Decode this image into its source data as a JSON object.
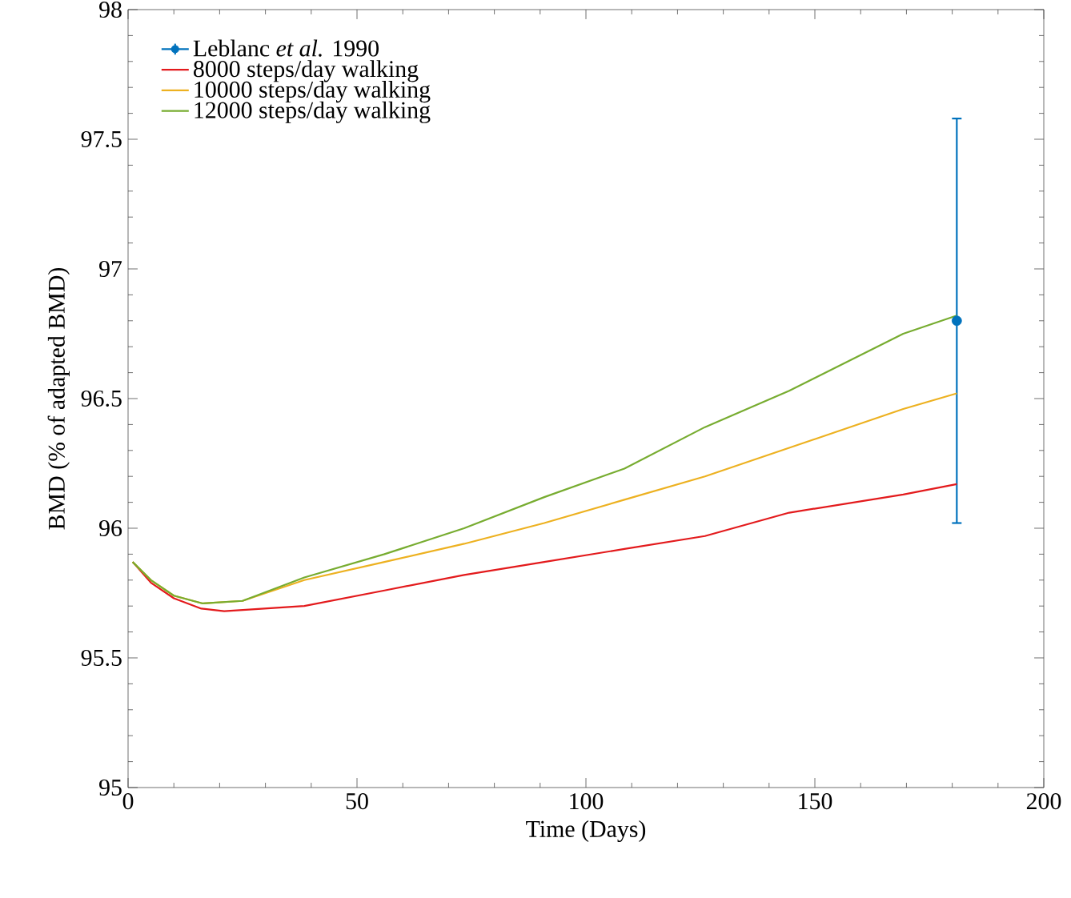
{
  "chart_data": {
    "type": "line",
    "xlabel": "Time (Days)",
    "ylabel": "BMD (% of adapted BMD)",
    "xlim": [
      0,
      200
    ],
    "ylim": [
      95,
      98
    ],
    "xticks": [
      0,
      50,
      100,
      150,
      200
    ],
    "yticks": [
      95,
      95.5,
      96,
      96.5,
      97,
      97.5,
      98
    ],
    "legend": "top left",
    "grid": false,
    "series": [
      {
        "name": "Leblanc *et al.* 1990",
        "type": "scatter",
        "marker": "circle",
        "color": "#0072bd",
        "x": [
          181
        ],
        "values": [
          96.8
        ],
        "errors": [
          0.78
        ]
      },
      {
        "name": "8000 steps/day walking",
        "color": "#e31a1c",
        "x": [
          1,
          5,
          10,
          16,
          21,
          38.5,
          56,
          73.4,
          90.9,
          108.4,
          126,
          144.4,
          169.3,
          181
        ],
        "values": [
          95.87,
          95.79,
          95.73,
          95.69,
          95.68,
          95.7,
          95.76,
          95.82,
          95.87,
          95.92,
          95.97,
          96.06,
          96.13,
          96.17
        ]
      },
      {
        "name": "10000 steps/day walking",
        "color": "#edb120",
        "x": [
          1,
          5,
          10,
          16.3,
          25,
          38.5,
          56,
          73.4,
          90.9,
          108.4,
          126,
          144.4,
          169.3,
          181
        ],
        "values": [
          95.87,
          95.8,
          95.74,
          95.71,
          95.72,
          95.8,
          95.87,
          95.94,
          96.02,
          96.11,
          96.2,
          96.31,
          96.46,
          96.52
        ]
      },
      {
        "name": "12000 steps/day walking",
        "color": "#77ac30",
        "x": [
          1,
          5,
          10,
          16.3,
          25,
          38.5,
          56,
          73.4,
          90.9,
          108.4,
          126,
          144.4,
          169.3,
          181
        ],
        "values": [
          95.87,
          95.8,
          95.74,
          95.71,
          95.72,
          95.81,
          95.9,
          96.0,
          96.12,
          96.23,
          96.39,
          96.53,
          96.75,
          96.82
        ]
      }
    ]
  }
}
